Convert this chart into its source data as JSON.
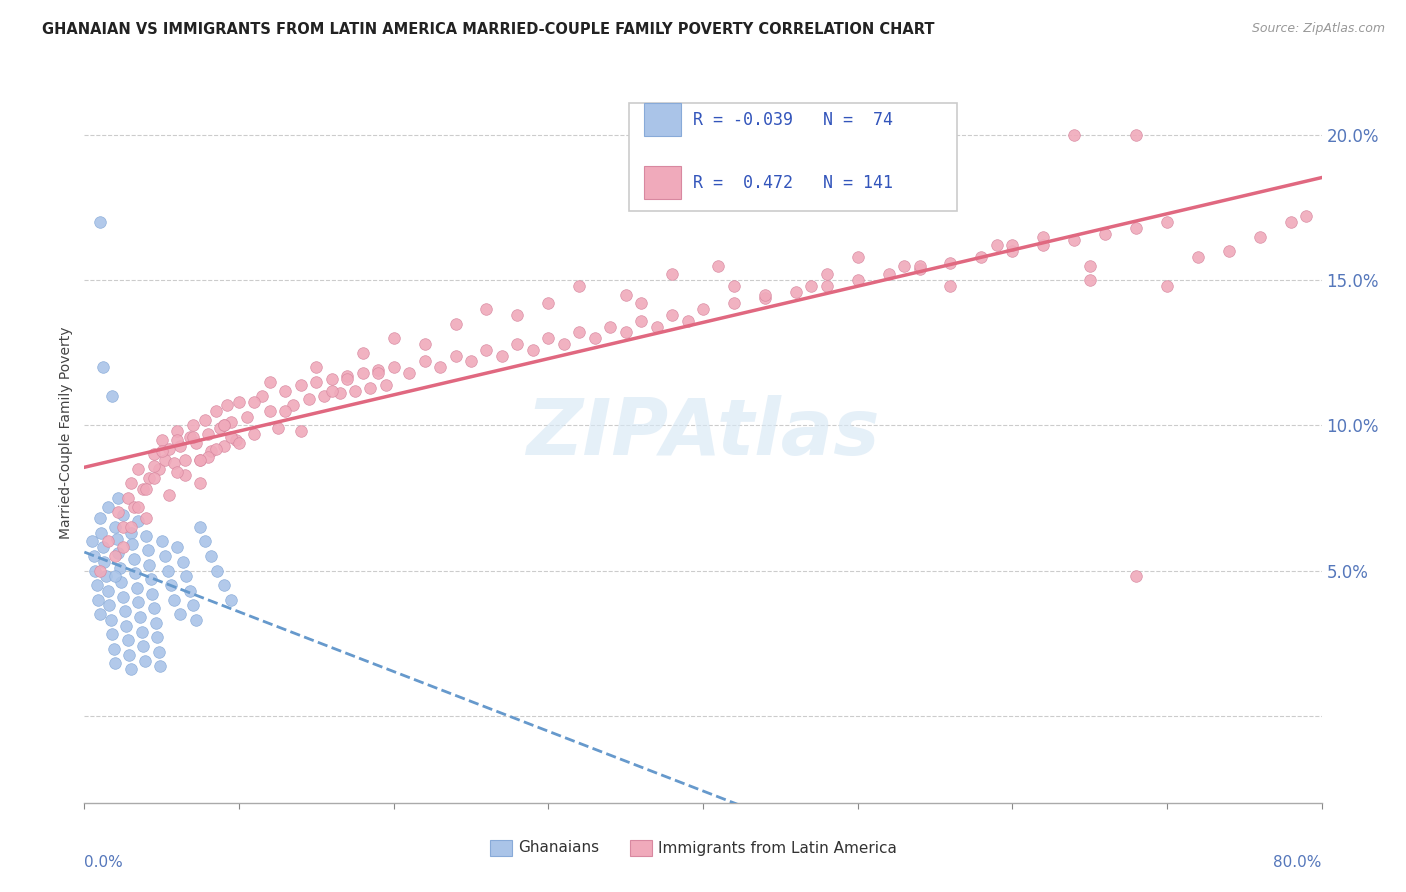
{
  "title": "GHANAIAN VS IMMIGRANTS FROM LATIN AMERICA MARRIED-COUPLE FAMILY POVERTY CORRELATION CHART",
  "source": "Source: ZipAtlas.com",
  "ylabel": "Married-Couple Family Poverty",
  "ylabel_right_ticks": [
    "20.0%",
    "15.0%",
    "10.0%",
    "5.0%"
  ],
  "ylabel_right_values": [
    0.2,
    0.15,
    0.1,
    0.05
  ],
  "xmin": 0.0,
  "xmax": 0.8,
  "ymin": -0.03,
  "ymax": 0.225,
  "watermark": "ZIPAtlas",
  "ghanaian_color": "#aac4e8",
  "latin_color": "#f0aabb",
  "trendline1_color": "#6699cc",
  "trendline2_color": "#e06880",
  "ghanaian_x": [
    0.005,
    0.006,
    0.007,
    0.008,
    0.009,
    0.01,
    0.01,
    0.011,
    0.012,
    0.013,
    0.014,
    0.015,
    0.015,
    0.016,
    0.017,
    0.018,
    0.019,
    0.02,
    0.02,
    0.021,
    0.022,
    0.022,
    0.023,
    0.024,
    0.025,
    0.025,
    0.026,
    0.027,
    0.028,
    0.029,
    0.03,
    0.03,
    0.031,
    0.032,
    0.033,
    0.034,
    0.035,
    0.035,
    0.036,
    0.037,
    0.038,
    0.039,
    0.04,
    0.041,
    0.042,
    0.043,
    0.044,
    0.045,
    0.046,
    0.047,
    0.048,
    0.049,
    0.05,
    0.052,
    0.054,
    0.056,
    0.058,
    0.06,
    0.062,
    0.064,
    0.066,
    0.068,
    0.07,
    0.072,
    0.075,
    0.078,
    0.082,
    0.086,
    0.09,
    0.095,
    0.01,
    0.012,
    0.018,
    0.02
  ],
  "ghanaian_y": [
    0.06,
    0.055,
    0.05,
    0.045,
    0.04,
    0.068,
    0.035,
    0.063,
    0.058,
    0.053,
    0.048,
    0.043,
    0.072,
    0.038,
    0.033,
    0.028,
    0.023,
    0.065,
    0.018,
    0.061,
    0.056,
    0.075,
    0.051,
    0.046,
    0.041,
    0.069,
    0.036,
    0.031,
    0.026,
    0.021,
    0.063,
    0.016,
    0.059,
    0.054,
    0.049,
    0.044,
    0.039,
    0.067,
    0.034,
    0.029,
    0.024,
    0.019,
    0.062,
    0.057,
    0.052,
    0.047,
    0.042,
    0.037,
    0.032,
    0.027,
    0.022,
    0.017,
    0.06,
    0.055,
    0.05,
    0.045,
    0.04,
    0.058,
    0.035,
    0.053,
    0.048,
    0.043,
    0.038,
    0.033,
    0.065,
    0.06,
    0.055,
    0.05,
    0.045,
    0.04,
    0.17,
    0.12,
    0.11,
    0.048
  ],
  "latin_x": [
    0.01,
    0.015,
    0.02,
    0.022,
    0.025,
    0.028,
    0.03,
    0.032,
    0.035,
    0.038,
    0.04,
    0.042,
    0.045,
    0.048,
    0.05,
    0.052,
    0.055,
    0.058,
    0.06,
    0.062,
    0.065,
    0.068,
    0.07,
    0.072,
    0.075,
    0.078,
    0.08,
    0.082,
    0.085,
    0.088,
    0.09,
    0.092,
    0.095,
    0.098,
    0.1,
    0.105,
    0.11,
    0.115,
    0.12,
    0.125,
    0.13,
    0.135,
    0.14,
    0.145,
    0.15,
    0.155,
    0.16,
    0.165,
    0.17,
    0.175,
    0.18,
    0.185,
    0.19,
    0.195,
    0.2,
    0.21,
    0.22,
    0.23,
    0.24,
    0.25,
    0.26,
    0.27,
    0.28,
    0.29,
    0.3,
    0.31,
    0.32,
    0.33,
    0.34,
    0.35,
    0.36,
    0.37,
    0.38,
    0.39,
    0.4,
    0.42,
    0.44,
    0.46,
    0.48,
    0.5,
    0.52,
    0.54,
    0.56,
    0.58,
    0.6,
    0.62,
    0.64,
    0.66,
    0.68,
    0.7,
    0.025,
    0.035,
    0.045,
    0.055,
    0.065,
    0.075,
    0.085,
    0.095,
    0.03,
    0.04,
    0.05,
    0.06,
    0.07,
    0.08,
    0.09,
    0.1,
    0.11,
    0.12,
    0.13,
    0.14,
    0.15,
    0.16,
    0.17,
    0.18,
    0.19,
    0.2,
    0.22,
    0.24,
    0.26,
    0.28,
    0.3,
    0.32,
    0.35,
    0.38,
    0.41,
    0.44,
    0.47,
    0.5,
    0.53,
    0.56,
    0.59,
    0.62,
    0.65,
    0.68,
    0.045,
    0.06,
    0.075,
    0.09,
    0.36,
    0.42,
    0.48,
    0.54,
    0.6,
    0.65,
    0.7,
    0.72,
    0.74,
    0.76,
    0.78,
    0.79,
    0.64,
    0.68
  ],
  "latin_y": [
    0.05,
    0.06,
    0.055,
    0.07,
    0.065,
    0.075,
    0.08,
    0.072,
    0.085,
    0.078,
    0.068,
    0.082,
    0.09,
    0.085,
    0.095,
    0.088,
    0.092,
    0.087,
    0.098,
    0.093,
    0.083,
    0.096,
    0.1,
    0.094,
    0.088,
    0.102,
    0.097,
    0.091,
    0.105,
    0.099,
    0.093,
    0.107,
    0.101,
    0.095,
    0.108,
    0.103,
    0.097,
    0.11,
    0.105,
    0.099,
    0.112,
    0.107,
    0.114,
    0.109,
    0.115,
    0.11,
    0.116,
    0.111,
    0.117,
    0.112,
    0.118,
    0.113,
    0.119,
    0.114,
    0.12,
    0.118,
    0.122,
    0.12,
    0.124,
    0.122,
    0.126,
    0.124,
    0.128,
    0.126,
    0.13,
    0.128,
    0.132,
    0.13,
    0.134,
    0.132,
    0.136,
    0.134,
    0.138,
    0.136,
    0.14,
    0.142,
    0.144,
    0.146,
    0.148,
    0.15,
    0.152,
    0.154,
    0.156,
    0.158,
    0.16,
    0.162,
    0.164,
    0.166,
    0.168,
    0.17,
    0.058,
    0.072,
    0.086,
    0.076,
    0.088,
    0.08,
    0.092,
    0.096,
    0.065,
    0.078,
    0.091,
    0.084,
    0.096,
    0.089,
    0.1,
    0.094,
    0.108,
    0.115,
    0.105,
    0.098,
    0.12,
    0.112,
    0.116,
    0.125,
    0.118,
    0.13,
    0.128,
    0.135,
    0.14,
    0.138,
    0.142,
    0.148,
    0.145,
    0.152,
    0.155,
    0.145,
    0.148,
    0.158,
    0.155,
    0.148,
    0.162,
    0.165,
    0.155,
    0.048,
    0.082,
    0.095,
    0.088,
    0.1,
    0.142,
    0.148,
    0.152,
    0.155,
    0.162,
    0.15,
    0.148,
    0.158,
    0.16,
    0.165,
    0.17,
    0.172,
    0.2,
    0.2
  ]
}
